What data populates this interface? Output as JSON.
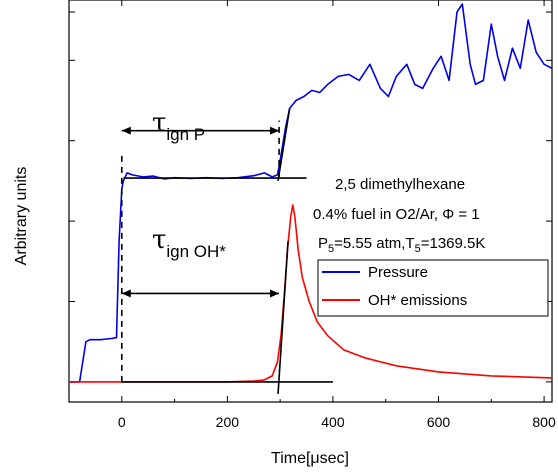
{
  "chart_data": {
    "type": "line",
    "xlabel": "Time[μsec]",
    "ylabel": "Arbitrary units",
    "xlim": [
      -100,
      815
    ],
    "ylim": [
      0,
      1
    ],
    "x_ticks": [
      0,
      200,
      400,
      600,
      800
    ],
    "x_tick_labels": [
      "0",
      "200",
      "400",
      "600",
      "800"
    ],
    "y_ticks": [
      0.05,
      0.25,
      0.45,
      0.65,
      0.85,
      0.97
    ],
    "grid": false,
    "legend_position": "right-middle",
    "series": [
      {
        "name": "Pressure",
        "color": "#0000ee",
        "points": [
          [
            -100,
            0.05
          ],
          [
            -80,
            0.05
          ],
          [
            -68,
            0.15
          ],
          [
            -60,
            0.155
          ],
          [
            -40,
            0.155
          ],
          [
            -20,
            0.158
          ],
          [
            -10,
            0.16
          ],
          [
            -5,
            0.4
          ],
          [
            0,
            0.53
          ],
          [
            3,
            0.55
          ],
          [
            10,
            0.57
          ],
          [
            20,
            0.565
          ],
          [
            40,
            0.56
          ],
          [
            60,
            0.562
          ],
          [
            80,
            0.555
          ],
          [
            100,
            0.558
          ],
          [
            130,
            0.556
          ],
          [
            160,
            0.558
          ],
          [
            190,
            0.556
          ],
          [
            220,
            0.558
          ],
          [
            250,
            0.563
          ],
          [
            270,
            0.57
          ],
          [
            285,
            0.56
          ],
          [
            295,
            0.565
          ],
          [
            300,
            0.6
          ],
          [
            310,
            0.68
          ],
          [
            318,
            0.73
          ],
          [
            330,
            0.75
          ],
          [
            345,
            0.76
          ],
          [
            360,
            0.775
          ],
          [
            375,
            0.77
          ],
          [
            390,
            0.79
          ],
          [
            410,
            0.81
          ],
          [
            430,
            0.815
          ],
          [
            450,
            0.8
          ],
          [
            470,
            0.84
          ],
          [
            490,
            0.78
          ],
          [
            505,
            0.76
          ],
          [
            520,
            0.81
          ],
          [
            540,
            0.84
          ],
          [
            555,
            0.79
          ],
          [
            570,
            0.78
          ],
          [
            590,
            0.83
          ],
          [
            605,
            0.86
          ],
          [
            620,
            0.8
          ],
          [
            635,
            0.97
          ],
          [
            645,
            0.99
          ],
          [
            660,
            0.84
          ],
          [
            670,
            0.79
          ],
          [
            685,
            0.8
          ],
          [
            700,
            0.94
          ],
          [
            712,
            0.86
          ],
          [
            725,
            0.8
          ],
          [
            740,
            0.88
          ],
          [
            755,
            0.83
          ],
          [
            770,
            0.95
          ],
          [
            785,
            0.87
          ],
          [
            800,
            0.84
          ],
          [
            815,
            0.83
          ]
        ]
      },
      {
        "name": "OH* emissions",
        "color": "#ff0000",
        "points": [
          [
            -100,
            0.05
          ],
          [
            0,
            0.05
          ],
          [
            100,
            0.05
          ],
          [
            200,
            0.05
          ],
          [
            250,
            0.052
          ],
          [
            270,
            0.055
          ],
          [
            285,
            0.065
          ],
          [
            295,
            0.1
          ],
          [
            302,
            0.17
          ],
          [
            308,
            0.27
          ],
          [
            314,
            0.38
          ],
          [
            320,
            0.46
          ],
          [
            324,
            0.49
          ],
          [
            328,
            0.46
          ],
          [
            334,
            0.38
          ],
          [
            342,
            0.31
          ],
          [
            355,
            0.25
          ],
          [
            370,
            0.2
          ],
          [
            390,
            0.165
          ],
          [
            420,
            0.13
          ],
          [
            460,
            0.11
          ],
          [
            520,
            0.09
          ],
          [
            600,
            0.075
          ],
          [
            700,
            0.065
          ],
          [
            815,
            0.06
          ]
        ]
      }
    ],
    "annotations": {
      "tau_p": "τ",
      "tau_p_sub": "ign P",
      "tau_oh": "τ",
      "tau_oh_sub": "ign OH*",
      "fuel_line": "2,5 dimethylhexane",
      "mixture_line": "0.4% fuel in O2/Ar, Φ = 1",
      "cond_p": "P",
      "cond_p_sub": "5",
      "cond_p_val": "=5.55 atm,T",
      "cond_t_sub": "5",
      "cond_t_val": "=1369.5K"
    }
  }
}
